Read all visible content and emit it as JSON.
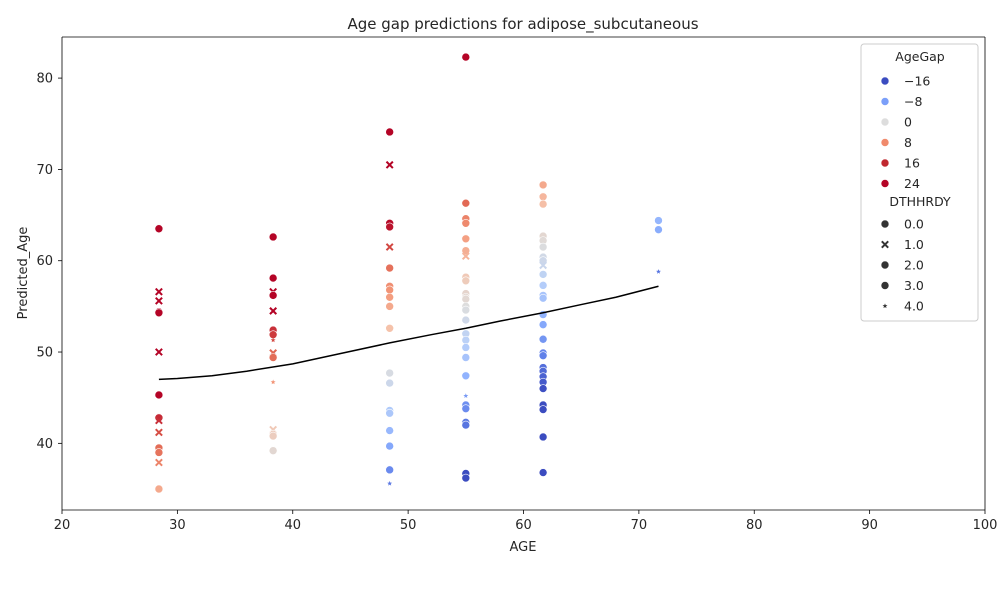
{
  "chart_data": {
    "type": "scatter",
    "title": "Age gap predictions for adipose_subcutaneous",
    "xlabel": "AGE",
    "ylabel": "Predicted_Age",
    "xlim": [
      20,
      100
    ],
    "ylim": [
      32.7,
      84.5
    ],
    "xticks": [
      20,
      30,
      40,
      50,
      60,
      70,
      80,
      90,
      100
    ],
    "yticks": [
      40,
      50,
      60,
      70,
      80
    ],
    "grid": false,
    "legend_position": "top-right",
    "hue": {
      "title": "AgeGap",
      "entries": [
        {
          "label": "−16",
          "color": "#3b4cc0"
        },
        {
          "label": "−8",
          "color": "#7b9ff9"
        },
        {
          "label": "0",
          "color": "#dddddd"
        },
        {
          "label": "8",
          "color": "#f08a6c"
        },
        {
          "label": "16",
          "color": "#c0282f"
        },
        {
          "label": "24",
          "color": "#b40426"
        }
      ]
    },
    "style": {
      "title": "DTHHRDY",
      "entries": [
        {
          "label": "0.0",
          "marker": "circle"
        },
        {
          "label": "1.0",
          "marker": "x"
        },
        {
          "label": "2.0",
          "marker": "circle"
        },
        {
          "label": "3.0",
          "marker": "circle"
        },
        {
          "label": "4.0",
          "marker": "star"
        }
      ]
    },
    "trend_line": {
      "x": [
        28.4,
        30,
        33,
        36,
        40,
        44,
        48.4,
        52,
        55,
        58,
        61.7,
        65,
        68,
        71.7
      ],
      "y": [
        47.0,
        47.1,
        47.4,
        47.9,
        48.7,
        49.8,
        51.0,
        51.9,
        52.6,
        53.4,
        54.3,
        55.2,
        56.0,
        57.2
      ]
    },
    "points": [
      {
        "x": 28.4,
        "y": 63.5,
        "marker": "circle"
      },
      {
        "x": 28.4,
        "y": 56.6,
        "marker": "x"
      },
      {
        "x": 28.4,
        "y": 55.6,
        "marker": "x"
      },
      {
        "x": 28.4,
        "y": 54.4,
        "marker": "circle"
      },
      {
        "x": 28.4,
        "y": 54.3,
        "marker": "circle"
      },
      {
        "x": 28.4,
        "y": 50.0,
        "marker": "x"
      },
      {
        "x": 28.4,
        "y": 45.3,
        "marker": "circle"
      },
      {
        "x": 28.4,
        "y": 42.8,
        "marker": "circle"
      },
      {
        "x": 28.4,
        "y": 42.5,
        "marker": "x"
      },
      {
        "x": 28.4,
        "y": 41.2,
        "marker": "x"
      },
      {
        "x": 28.4,
        "y": 39.5,
        "marker": "circle"
      },
      {
        "x": 28.4,
        "y": 39.0,
        "marker": "circle"
      },
      {
        "x": 28.4,
        "y": 37.9,
        "marker": "x"
      },
      {
        "x": 28.4,
        "y": 35.0,
        "marker": "circle"
      },
      {
        "x": 38.3,
        "y": 62.6,
        "marker": "circle"
      },
      {
        "x": 38.3,
        "y": 58.1,
        "marker": "circle"
      },
      {
        "x": 38.3,
        "y": 56.6,
        "marker": "x"
      },
      {
        "x": 38.3,
        "y": 56.2,
        "marker": "circle"
      },
      {
        "x": 38.3,
        "y": 54.5,
        "marker": "x"
      },
      {
        "x": 38.3,
        "y": 52.4,
        "marker": "circle"
      },
      {
        "x": 38.3,
        "y": 51.9,
        "marker": "circle"
      },
      {
        "x": 38.3,
        "y": 51.3,
        "marker": "star"
      },
      {
        "x": 38.3,
        "y": 49.9,
        "marker": "x"
      },
      {
        "x": 38.3,
        "y": 49.4,
        "marker": "circle"
      },
      {
        "x": 38.3,
        "y": 46.7,
        "marker": "star"
      },
      {
        "x": 38.3,
        "y": 41.5,
        "marker": "x"
      },
      {
        "x": 38.3,
        "y": 41.0,
        "marker": "circle"
      },
      {
        "x": 38.3,
        "y": 40.8,
        "marker": "circle"
      },
      {
        "x": 38.3,
        "y": 39.2,
        "marker": "circle"
      },
      {
        "x": 48.4,
        "y": 74.1,
        "marker": "circle"
      },
      {
        "x": 48.4,
        "y": 70.5,
        "marker": "x"
      },
      {
        "x": 48.4,
        "y": 64.1,
        "marker": "circle"
      },
      {
        "x": 48.4,
        "y": 63.7,
        "marker": "circle"
      },
      {
        "x": 48.4,
        "y": 61.5,
        "marker": "x"
      },
      {
        "x": 48.4,
        "y": 59.2,
        "marker": "circle"
      },
      {
        "x": 48.4,
        "y": 57.2,
        "marker": "circle"
      },
      {
        "x": 48.4,
        "y": 56.8,
        "marker": "circle"
      },
      {
        "x": 48.4,
        "y": 56.0,
        "marker": "circle"
      },
      {
        "x": 48.4,
        "y": 55.0,
        "marker": "circle"
      },
      {
        "x": 48.4,
        "y": 52.6,
        "marker": "circle"
      },
      {
        "x": 48.4,
        "y": 47.7,
        "marker": "circle"
      },
      {
        "x": 48.4,
        "y": 46.6,
        "marker": "circle"
      },
      {
        "x": 48.4,
        "y": 43.6,
        "marker": "circle"
      },
      {
        "x": 48.4,
        "y": 43.3,
        "marker": "circle"
      },
      {
        "x": 48.4,
        "y": 41.4,
        "marker": "circle"
      },
      {
        "x": 48.4,
        "y": 39.7,
        "marker": "circle"
      },
      {
        "x": 48.4,
        "y": 37.1,
        "marker": "circle"
      },
      {
        "x": 48.4,
        "y": 35.6,
        "marker": "star"
      },
      {
        "x": 55.0,
        "y": 82.3,
        "marker": "circle"
      },
      {
        "x": 55.0,
        "y": 66.3,
        "marker": "circle"
      },
      {
        "x": 55.0,
        "y": 64.6,
        "marker": "circle"
      },
      {
        "x": 55.0,
        "y": 64.1,
        "marker": "circle"
      },
      {
        "x": 55.0,
        "y": 62.4,
        "marker": "circle"
      },
      {
        "x": 55.0,
        "y": 61.1,
        "marker": "circle"
      },
      {
        "x": 55.0,
        "y": 60.5,
        "marker": "x"
      },
      {
        "x": 55.0,
        "y": 58.2,
        "marker": "circle"
      },
      {
        "x": 55.0,
        "y": 57.8,
        "marker": "circle"
      },
      {
        "x": 55.0,
        "y": 56.4,
        "marker": "circle"
      },
      {
        "x": 55.0,
        "y": 56.0,
        "marker": "circle"
      },
      {
        "x": 55.0,
        "y": 55.8,
        "marker": "circle"
      },
      {
        "x": 55.0,
        "y": 55.0,
        "marker": "circle"
      },
      {
        "x": 55.0,
        "y": 54.6,
        "marker": "circle"
      },
      {
        "x": 55.0,
        "y": 53.5,
        "marker": "circle"
      },
      {
        "x": 55.0,
        "y": 52.0,
        "marker": "circle"
      },
      {
        "x": 55.0,
        "y": 51.3,
        "marker": "circle"
      },
      {
        "x": 55.0,
        "y": 50.5,
        "marker": "circle"
      },
      {
        "x": 55.0,
        "y": 49.4,
        "marker": "circle"
      },
      {
        "x": 55.0,
        "y": 47.4,
        "marker": "circle"
      },
      {
        "x": 55.0,
        "y": 45.2,
        "marker": "star"
      },
      {
        "x": 55.0,
        "y": 44.2,
        "marker": "circle"
      },
      {
        "x": 55.0,
        "y": 43.8,
        "marker": "circle"
      },
      {
        "x": 55.0,
        "y": 42.3,
        "marker": "circle"
      },
      {
        "x": 55.0,
        "y": 42.0,
        "marker": "circle"
      },
      {
        "x": 55.0,
        "y": 36.7,
        "marker": "circle"
      },
      {
        "x": 55.0,
        "y": 36.2,
        "marker": "circle"
      },
      {
        "x": 61.7,
        "y": 68.3,
        "marker": "circle"
      },
      {
        "x": 61.7,
        "y": 67.0,
        "marker": "circle"
      },
      {
        "x": 61.7,
        "y": 66.2,
        "marker": "circle"
      },
      {
        "x": 61.7,
        "y": 62.7,
        "marker": "circle"
      },
      {
        "x": 61.7,
        "y": 62.2,
        "marker": "circle"
      },
      {
        "x": 61.7,
        "y": 61.5,
        "marker": "circle"
      },
      {
        "x": 61.7,
        "y": 60.4,
        "marker": "circle"
      },
      {
        "x": 61.7,
        "y": 60.0,
        "marker": "circle"
      },
      {
        "x": 61.7,
        "y": 59.5,
        "marker": "x"
      },
      {
        "x": 61.7,
        "y": 58.5,
        "marker": "circle"
      },
      {
        "x": 61.7,
        "y": 57.3,
        "marker": "circle"
      },
      {
        "x": 61.7,
        "y": 56.2,
        "marker": "circle"
      },
      {
        "x": 61.7,
        "y": 55.9,
        "marker": "circle"
      },
      {
        "x": 61.7,
        "y": 54.1,
        "marker": "circle"
      },
      {
        "x": 61.7,
        "y": 53.0,
        "marker": "circle"
      },
      {
        "x": 61.7,
        "y": 51.4,
        "marker": "circle"
      },
      {
        "x": 61.7,
        "y": 49.9,
        "marker": "circle"
      },
      {
        "x": 61.7,
        "y": 49.6,
        "marker": "circle"
      },
      {
        "x": 61.7,
        "y": 48.3,
        "marker": "circle"
      },
      {
        "x": 61.7,
        "y": 47.9,
        "marker": "circle"
      },
      {
        "x": 61.7,
        "y": 47.3,
        "marker": "circle"
      },
      {
        "x": 61.7,
        "y": 46.7,
        "marker": "circle"
      },
      {
        "x": 61.7,
        "y": 46.0,
        "marker": "circle"
      },
      {
        "x": 61.7,
        "y": 44.2,
        "marker": "circle"
      },
      {
        "x": 61.7,
        "y": 43.7,
        "marker": "circle"
      },
      {
        "x": 61.7,
        "y": 40.7,
        "marker": "circle"
      },
      {
        "x": 61.7,
        "y": 36.8,
        "marker": "circle"
      },
      {
        "x": 71.7,
        "y": 64.4,
        "marker": "circle"
      },
      {
        "x": 71.7,
        "y": 63.4,
        "marker": "circle"
      },
      {
        "x": 71.7,
        "y": 58.8,
        "marker": "star"
      }
    ]
  }
}
